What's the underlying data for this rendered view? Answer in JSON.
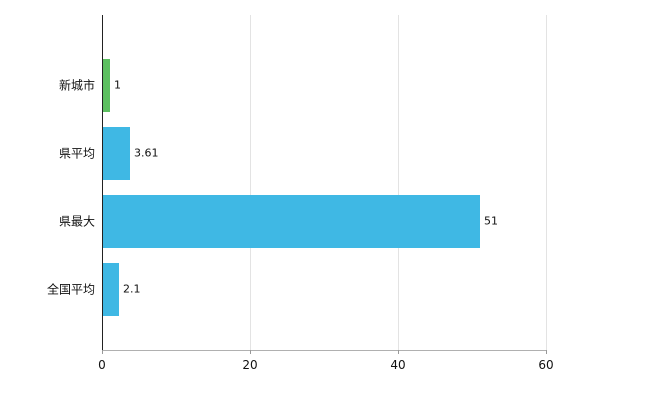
{
  "chart_data": {
    "type": "bar",
    "orientation": "horizontal",
    "title": "",
    "xlabel": "",
    "ylabel": "",
    "categories": [
      "新城市",
      "県平均",
      "県最大",
      "全国平均"
    ],
    "values": [
      1,
      3.61,
      51,
      2.1
    ],
    "value_labels": [
      "1",
      "3.61",
      "51",
      "2.1"
    ],
    "bar_colors": [
      "#5cbf60",
      "#3fb8e4",
      "#3fb8e4",
      "#3fb8e4"
    ],
    "xlim": [
      0,
      60
    ],
    "xticks": [
      0,
      20,
      40,
      60
    ],
    "xtick_labels": [
      "0",
      "20",
      "40",
      "60"
    ],
    "grid": "vertical",
    "legend": "none",
    "background": "#ffffff"
  },
  "colors": {
    "bar_blue": "#3fb8e4",
    "bar_green": "#5cbf60",
    "grid": "#e3e3e3",
    "axis_y": "#222222",
    "axis_x": "#b0b0b0",
    "text": "#111111"
  }
}
